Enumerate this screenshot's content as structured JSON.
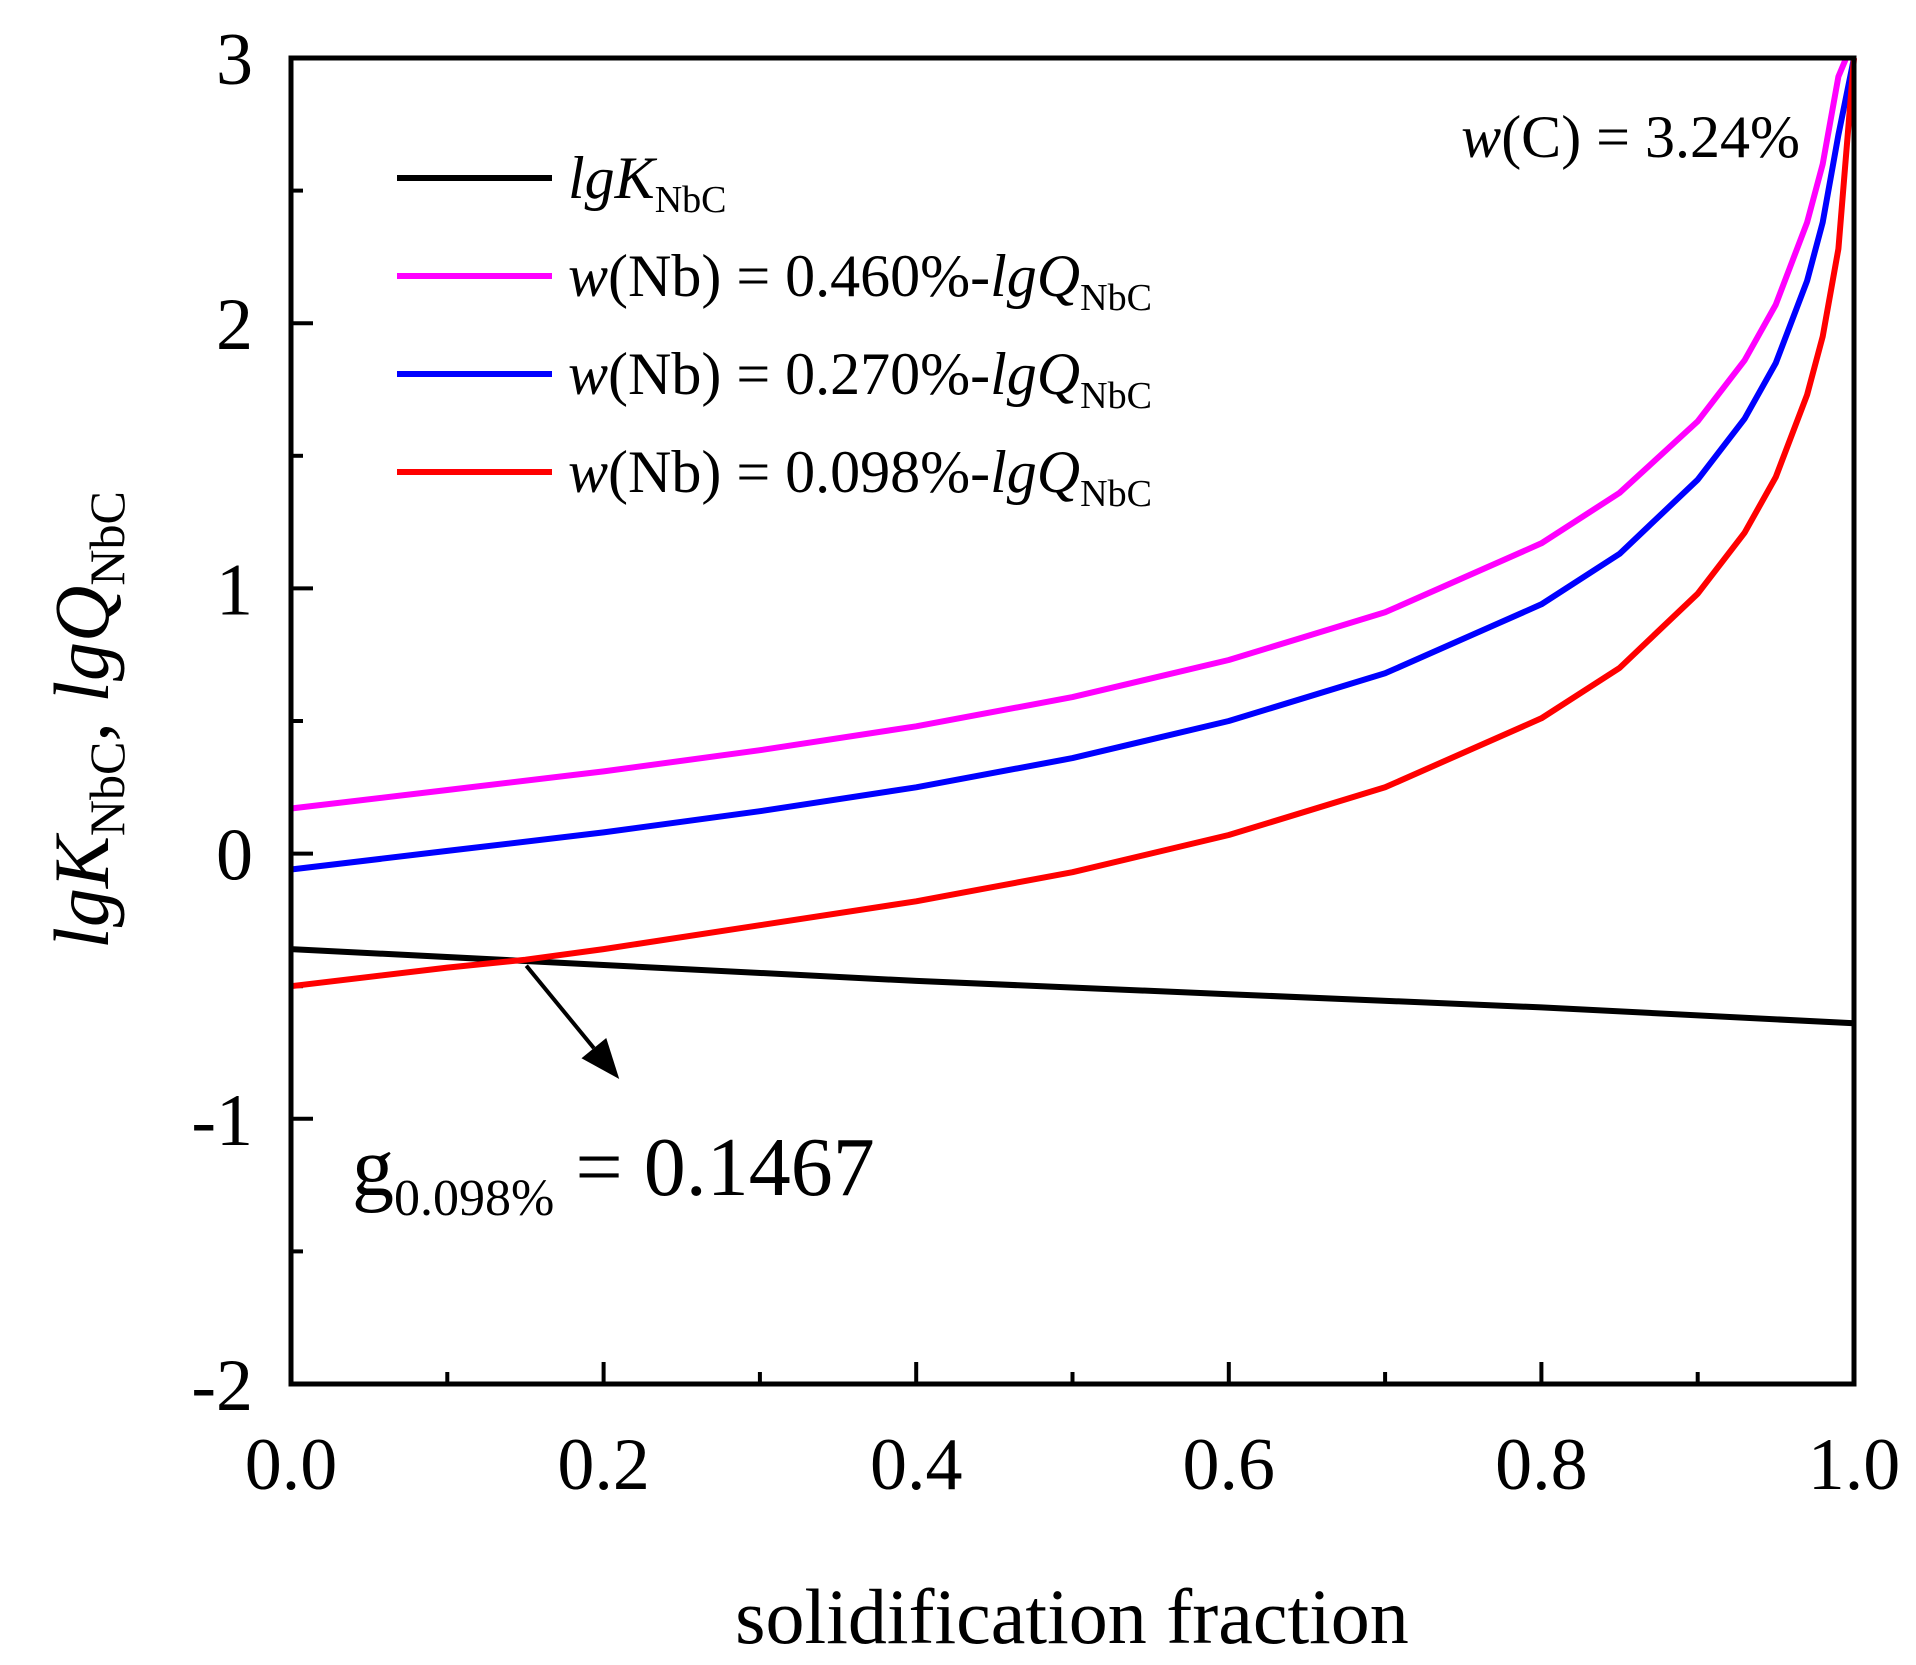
{
  "chart_data": {
    "type": "line",
    "title": "",
    "xlabel": "solidification fraction",
    "ylabel": {
      "part1": "lgK",
      "sub1": "NbC",
      "sep": ", ",
      "part2": "lgQ",
      "sub2": "NbC"
    },
    "xlim": [
      0,
      1
    ],
    "ylim": [
      -2,
      3
    ],
    "x_ticks": [
      "0.0",
      "0.2",
      "0.4",
      "0.6",
      "0.8",
      "1.0"
    ],
    "y_ticks": [
      "-2",
      "-1",
      "0",
      "1",
      "2",
      "3"
    ],
    "grid": false,
    "legend_position": "top-left",
    "series": [
      {
        "name": "lgK_NbC",
        "legend": {
          "prefix": "",
          "italic": "lgK",
          "sub": "NbC"
        },
        "color": "#000000",
        "x": [
          0,
          0.2,
          0.4,
          0.6,
          0.8,
          1.0
        ],
        "y": [
          -0.36,
          -0.42,
          -0.48,
          -0.53,
          -0.58,
          -0.64
        ]
      },
      {
        "name": "w(Nb) = 0.460%-lgQ_NbC",
        "legend": {
          "w": "w",
          "value": "(Nb) = 0.460%-",
          "italic": "lgQ",
          "sub": "NbC"
        },
        "color": "#ff00ff",
        "x": [
          0,
          0.1,
          0.2,
          0.3,
          0.4,
          0.5,
          0.6,
          0.7,
          0.8,
          0.85,
          0.9,
          0.93,
          0.95,
          0.97,
          0.98,
          0.99,
          0.995
        ],
        "y": [
          0.17,
          0.24,
          0.31,
          0.39,
          0.48,
          0.59,
          0.73,
          0.91,
          1.17,
          1.36,
          1.63,
          1.86,
          2.07,
          2.38,
          2.6,
          2.93,
          3.0
        ]
      },
      {
        "name": "w(Nb) = 0.270%-lgQ_NbC",
        "legend": {
          "w": "w",
          "value": "(Nb) = 0.270%-",
          "italic": "lgQ",
          "sub": "NbC"
        },
        "color": "#0000ff",
        "x": [
          0,
          0.1,
          0.2,
          0.3,
          0.4,
          0.5,
          0.6,
          0.7,
          0.8,
          0.85,
          0.9,
          0.93,
          0.95,
          0.97,
          0.98,
          0.99,
          1.0
        ],
        "y": [
          -0.06,
          0.01,
          0.08,
          0.16,
          0.25,
          0.36,
          0.5,
          0.68,
          0.94,
          1.13,
          1.41,
          1.64,
          1.85,
          2.16,
          2.38,
          2.71,
          3.0
        ]
      },
      {
        "name": "w(Nb) = 0.098%-lgQ_NbC",
        "legend": {
          "w": "w",
          "value": "(Nb) = 0.098%-",
          "italic": "lgQ",
          "sub": "NbC"
        },
        "color": "#ff0000",
        "x": [
          0,
          0.1,
          0.15,
          0.2,
          0.3,
          0.4,
          0.5,
          0.6,
          0.7,
          0.8,
          0.85,
          0.9,
          0.93,
          0.95,
          0.97,
          0.98,
          0.99,
          1.0
        ],
        "y": [
          -0.5,
          -0.43,
          -0.4,
          -0.36,
          -0.27,
          -0.18,
          -0.07,
          0.07,
          0.25,
          0.51,
          0.7,
          0.98,
          1.21,
          1.42,
          1.73,
          1.95,
          2.28,
          3.0
        ]
      }
    ],
    "annotations": {
      "carbon": {
        "w": "w",
        "text": "(C) = 3.24%",
        "position": "top-right"
      },
      "intersection": {
        "base": "g",
        "sub": "0.098%",
        "text": " = 0.1467",
        "x": 0.1467,
        "y": -0.4,
        "arrow_to": [
          0.21,
          -0.85
        ]
      }
    }
  }
}
